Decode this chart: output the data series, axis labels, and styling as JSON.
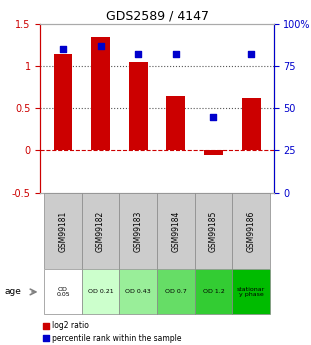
{
  "title": "GDS2589 / 4147",
  "samples": [
    "GSM99181",
    "GSM99182",
    "GSM99183",
    "GSM99184",
    "GSM99185",
    "GSM99186"
  ],
  "log2_ratio": [
    1.15,
    1.35,
    1.05,
    0.65,
    -0.05,
    0.62
  ],
  "percentile_rank": [
    85,
    87,
    82,
    82,
    45,
    82
  ],
  "bar_color": "#cc0000",
  "dot_color": "#0000cc",
  "ylim_left": [
    -0.5,
    1.5
  ],
  "ylim_right": [
    0,
    100
  ],
  "yticks_left": [
    -0.5,
    0,
    0.5,
    1.0,
    1.5
  ],
  "yticks_right": [
    0,
    25,
    50,
    75,
    100
  ],
  "ytick_labels_left": [
    "-0.5",
    "0",
    "0.5",
    "1",
    "1.5"
  ],
  "ytick_labels_right": [
    "0",
    "25",
    "50",
    "75",
    "100%"
  ],
  "hlines": [
    0.5,
    1.0
  ],
  "hline_zero_color": "#cc0000",
  "hline_dotted_color": "#555555",
  "od_labels": [
    "OD\n0.05",
    "OD 0.21",
    "OD 0.43",
    "OD 0.7",
    "OD 1.2",
    "stationar\ny phase"
  ],
  "od_colors": [
    "#ffffff",
    "#ccffcc",
    "#99ee99",
    "#66dd66",
    "#33cc33",
    "#00bb00"
  ],
  "age_label": "age",
  "legend_items": [
    {
      "label": "log2 ratio",
      "color": "#cc0000",
      "marker": "s"
    },
    {
      "label": "percentile rank within the sample",
      "color": "#0000cc",
      "marker": "s"
    }
  ],
  "grid_color": "#cccccc",
  "sample_box_color": "#cccccc"
}
